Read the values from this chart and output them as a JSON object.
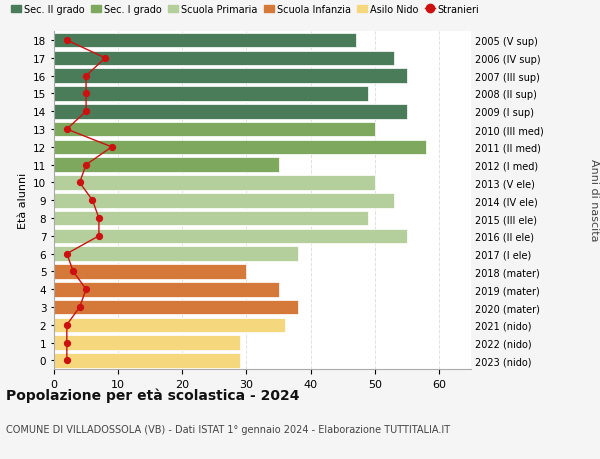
{
  "ages": [
    18,
    17,
    16,
    15,
    14,
    13,
    12,
    11,
    10,
    9,
    8,
    7,
    6,
    5,
    4,
    3,
    2,
    1,
    0
  ],
  "years_labels": [
    "2005 (V sup)",
    "2006 (IV sup)",
    "2007 (III sup)",
    "2008 (II sup)",
    "2009 (I sup)",
    "2010 (III med)",
    "2011 (II med)",
    "2012 (I med)",
    "2013 (V ele)",
    "2014 (IV ele)",
    "2015 (III ele)",
    "2016 (II ele)",
    "2017 (I ele)",
    "2018 (mater)",
    "2019 (mater)",
    "2020 (mater)",
    "2021 (nido)",
    "2022 (nido)",
    "2023 (nido)"
  ],
  "bar_values": [
    47,
    53,
    55,
    49,
    55,
    50,
    58,
    35,
    50,
    53,
    49,
    55,
    38,
    30,
    35,
    38,
    36,
    29,
    29
  ],
  "bar_colors": [
    "#4a7c59",
    "#4a7c59",
    "#4a7c59",
    "#4a7c59",
    "#4a7c59",
    "#7da85e",
    "#7da85e",
    "#7da85e",
    "#b5cf9c",
    "#b5cf9c",
    "#b5cf9c",
    "#b5cf9c",
    "#b5cf9c",
    "#d4793a",
    "#d4793a",
    "#d4793a",
    "#f5d87e",
    "#f5d87e",
    "#f5d87e"
  ],
  "stranieri_values": [
    2,
    8,
    5,
    5,
    5,
    2,
    9,
    5,
    4,
    6,
    7,
    7,
    2,
    3,
    5,
    4,
    2,
    2,
    2
  ],
  "legend_labels": [
    "Sec. II grado",
    "Sec. I grado",
    "Scuola Primaria",
    "Scuola Infanzia",
    "Asilo Nido",
    "Stranieri"
  ],
  "legend_colors": [
    "#4a7c59",
    "#7da85e",
    "#b5cf9c",
    "#d4793a",
    "#f5d87e",
    "#cc1111"
  ],
  "title": "Popolazione per età scolastica - 2024",
  "subtitle": "COMUNE DI VILLADOSSOLA (VB) - Dati ISTAT 1° gennaio 2024 - Elaborazione TUTTITALIA.IT",
  "ylabel_left": "Età alunni",
  "ylabel_right": "Anni di nascita",
  "xlim": [
    0,
    65
  ],
  "background_color": "#f5f5f5",
  "bar_background_color": "#ffffff"
}
